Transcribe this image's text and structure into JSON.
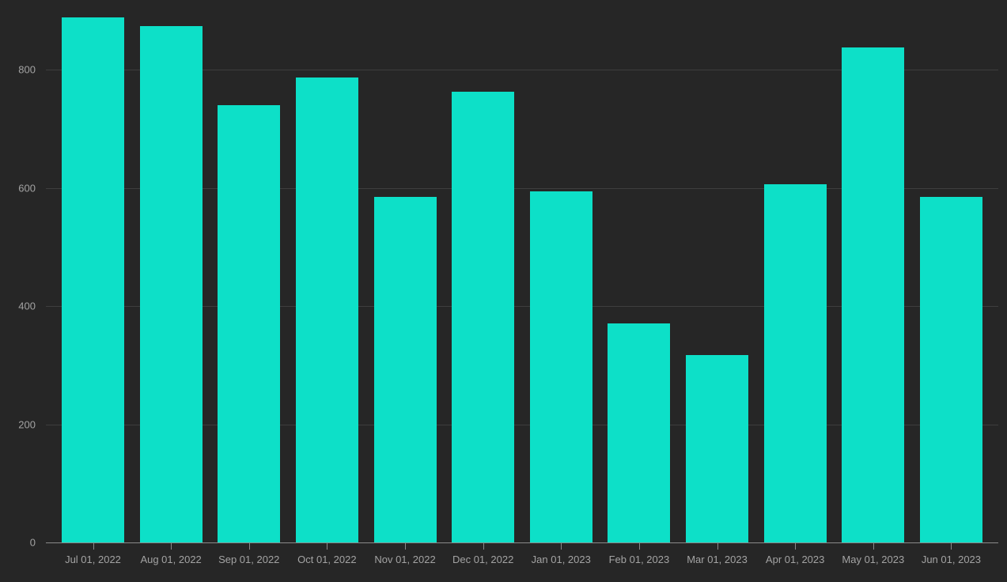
{
  "chart_data": {
    "type": "bar",
    "title": "",
    "xlabel": "",
    "ylabel": "",
    "categories": [
      "Jul 01, 2022",
      "Aug 01, 2022",
      "Sep 01, 2022",
      "Oct 01, 2022",
      "Nov 01, 2022",
      "Dec 01, 2022",
      "Jan 01, 2023",
      "Feb 01, 2023",
      "Mar 01, 2023",
      "Apr 01, 2023",
      "May 01, 2023",
      "Jun 01, 2023"
    ],
    "values": [
      888,
      874,
      740,
      786,
      585,
      762,
      594,
      371,
      317,
      606,
      837,
      585
    ],
    "ylim": [
      0,
      900
    ],
    "yticks": [
      0,
      200,
      400,
      600,
      800
    ],
    "grid": "horizontal-only",
    "legend": "none",
    "colors": {
      "bar": "#0de0c8",
      "background": "#262626",
      "gridline": "#3e3e3e",
      "axis_line": "#8a8a8a",
      "tick_label": "#a3a3a3"
    }
  }
}
